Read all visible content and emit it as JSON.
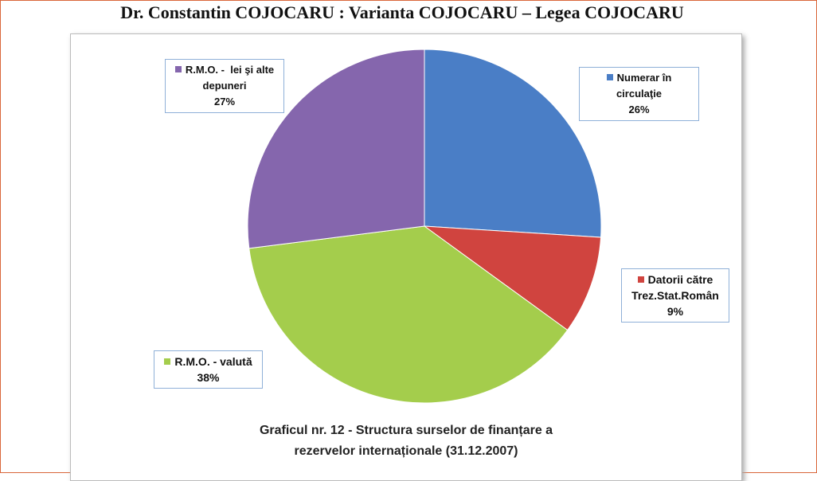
{
  "chart_data": {
    "type": "pie",
    "title": "Dr. Constantin COJOCARU : Varianta COJOCARU – Legea COJOCARU",
    "subtitle": "Graficul nr. 12 - Structura surselor de finanțare a rezervelor internaționale (31.12.2007)",
    "categories": [
      "Numerar în circulaţie",
      "Datorii către Trez.Stat.Român",
      "R.M.O. - valută",
      "R.M.O. -  lei şi alte depuneri"
    ],
    "values": [
      26,
      9,
      38,
      27
    ],
    "value_labels": [
      "26%",
      "9%",
      "38%",
      "27%"
    ],
    "colors": [
      "#4a7ec6",
      "#d0443f",
      "#a4cd4c",
      "#8566ad"
    ]
  }
}
